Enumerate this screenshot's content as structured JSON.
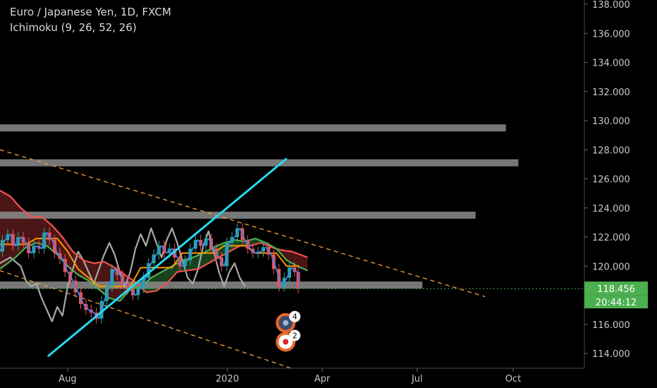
{
  "header": {
    "symbol_title": "Euro / Japanese Yen, 1D, FXCM",
    "indicator": "Ichimoku (9, 26, 52, 26)"
  },
  "chart_data": {
    "type": "line",
    "title": "Euro / Japanese Yen, 1D, FXCM",
    "y_ticks": [
      "114.000",
      "116.000",
      "118.000",
      "120.000",
      "122.000",
      "124.000",
      "126.000",
      "128.000",
      "130.000",
      "132.000",
      "134.000",
      "136.000",
      "138.000"
    ],
    "ylim": [
      113.5,
      138.2
    ],
    "x_ticks": [
      {
        "label": "Aug",
        "day": 0
      },
      {
        "label": "2020",
        "day": 153
      },
      {
        "label": "Apr",
        "day": 244
      },
      {
        "label": "Jul",
        "day": 335
      },
      {
        "label": "Oct",
        "day": 427
      }
    ],
    "current_price": "118.456",
    "countdown": "20:44:12",
    "resistance_zones": [
      {
        "price": 129.5,
        "x_end_day": 420
      },
      {
        "price": 127.1,
        "x_end_day": 432
      },
      {
        "price": 123.5,
        "x_end_day": 391
      },
      {
        "price": 118.7,
        "x_end_day": 340
      }
    ],
    "trendline": {
      "start": [
        -19,
        113.8
      ],
      "end": [
        210,
        127.4
      ]
    },
    "channel_upper": {
      "start": [
        -65,
        128.0
      ],
      "end": [
        400,
        117.9
      ]
    },
    "channel_lower": {
      "start": [
        -65,
        119.7
      ],
      "end": [
        230,
        112.6
      ]
    },
    "price_series": [
      [
        -65,
        121.0
      ],
      [
        -60,
        121.8
      ],
      [
        -55,
        122.2
      ],
      [
        -50,
        121.4
      ],
      [
        -45,
        122.0
      ],
      [
        -40,
        121.6
      ],
      [
        -35,
        120.9
      ],
      [
        -30,
        121.4
      ],
      [
        -25,
        121.2
      ],
      [
        -20,
        122.3
      ],
      [
        -15,
        121.8
      ],
      [
        -10,
        120.9
      ],
      [
        -5,
        120.5
      ],
      [
        0,
        119.6
      ],
      [
        5,
        119.0
      ],
      [
        10,
        118.2
      ],
      [
        15,
        117.4
      ],
      [
        20,
        117.0
      ],
      [
        25,
        116.8
      ],
      [
        30,
        116.4
      ],
      [
        35,
        117.6
      ],
      [
        40,
        118.6
      ],
      [
        45,
        119.8
      ],
      [
        50,
        119.4
      ],
      [
        55,
        118.8
      ],
      [
        60,
        118.4
      ],
      [
        65,
        118.0
      ],
      [
        70,
        118.5
      ],
      [
        75,
        119.2
      ],
      [
        80,
        120.2
      ],
      [
        85,
        120.8
      ],
      [
        90,
        121.4
      ],
      [
        95,
        120.9
      ],
      [
        100,
        121.2
      ],
      [
        105,
        120.6
      ],
      [
        110,
        120.0
      ],
      [
        115,
        120.4
      ],
      [
        120,
        121.2
      ],
      [
        125,
        121.8
      ],
      [
        130,
        121.4
      ],
      [
        135,
        121.9
      ],
      [
        140,
        121.2
      ],
      [
        145,
        120.6
      ],
      [
        150,
        120.0
      ],
      [
        155,
        121.6
      ],
      [
        160,
        122.0
      ],
      [
        165,
        122.6
      ],
      [
        170,
        121.8
      ],
      [
        175,
        121.2
      ],
      [
        180,
        120.9
      ],
      [
        185,
        121.0
      ],
      [
        190,
        121.3
      ],
      [
        195,
        120.8
      ],
      [
        200,
        119.8
      ],
      [
        205,
        118.6
      ],
      [
        210,
        119.2
      ],
      [
        215,
        119.9
      ],
      [
        220,
        119.6
      ],
      [
        222,
        118.5
      ]
    ],
    "kijun_series": [
      [
        -65,
        121.5
      ],
      [
        -40,
        121.5
      ],
      [
        -30,
        121.9
      ],
      [
        -10,
        121.9
      ],
      [
        0,
        121.0
      ],
      [
        10,
        119.8
      ],
      [
        30,
        118.6
      ],
      [
        60,
        118.6
      ],
      [
        70,
        119.9
      ],
      [
        100,
        119.9
      ],
      [
        110,
        120.9
      ],
      [
        140,
        120.9
      ],
      [
        150,
        121.4
      ],
      [
        170,
        121.4
      ],
      [
        180,
        120.9
      ],
      [
        200,
        120.9
      ],
      [
        210,
        120.0
      ],
      [
        222,
        120.0
      ]
    ],
    "lagging_series": [
      [
        -65,
        120.2
      ],
      [
        -55,
        120.6
      ],
      [
        -45,
        120.0
      ],
      [
        -40,
        119.0
      ],
      [
        -35,
        118.6
      ],
      [
        -30,
        118.8
      ],
      [
        -25,
        117.8
      ],
      [
        -20,
        117.0
      ],
      [
        -15,
        116.2
      ],
      [
        -10,
        117.2
      ],
      [
        -5,
        116.6
      ],
      [
        0,
        118.6
      ],
      [
        5,
        119.8
      ],
      [
        10,
        121.0
      ],
      [
        15,
        120.4
      ],
      [
        20,
        119.6
      ],
      [
        25,
        118.8
      ],
      [
        30,
        119.8
      ],
      [
        35,
        120.8
      ],
      [
        40,
        121.6
      ],
      [
        45,
        120.8
      ],
      [
        50,
        119.6
      ],
      [
        55,
        118.6
      ],
      [
        60,
        119.6
      ],
      [
        65,
        121.2
      ],
      [
        70,
        122.2
      ],
      [
        75,
        121.4
      ],
      [
        80,
        122.6
      ],
      [
        85,
        121.6
      ],
      [
        90,
        120.6
      ],
      [
        95,
        121.8
      ],
      [
        100,
        122.6
      ],
      [
        105,
        121.6
      ],
      [
        110,
        120.4
      ],
      [
        115,
        119.2
      ],
      [
        120,
        118.8
      ],
      [
        125,
        119.8
      ],
      [
        130,
        121.4
      ],
      [
        135,
        122.4
      ],
      [
        140,
        121.0
      ],
      [
        145,
        119.6
      ],
      [
        150,
        118.6
      ],
      [
        155,
        119.6
      ],
      [
        160,
        120.2
      ],
      [
        165,
        119.2
      ],
      [
        170,
        118.6
      ]
    ],
    "span_a_series": [
      [
        -65,
        119.8
      ],
      [
        -50,
        120.6
      ],
      [
        -40,
        121.3
      ],
      [
        -30,
        121.6
      ],
      [
        -20,
        121.4
      ],
      [
        -10,
        120.8
      ],
      [
        0,
        120.0
      ],
      [
        10,
        119.4
      ],
      [
        20,
        119.0
      ],
      [
        30,
        118.4
      ],
      [
        40,
        117.8
      ],
      [
        50,
        117.6
      ],
      [
        60,
        118.4
      ],
      [
        70,
        118.6
      ],
      [
        80,
        119.2
      ],
      [
        90,
        119.6
      ],
      [
        100,
        120.0
      ],
      [
        110,
        120.4
      ],
      [
        120,
        120.6
      ],
      [
        130,
        120.9
      ],
      [
        140,
        121.3
      ],
      [
        150,
        121.6
      ],
      [
        160,
        121.8
      ],
      [
        170,
        121.7
      ],
      [
        180,
        121.9
      ],
      [
        190,
        121.6
      ],
      [
        200,
        121.2
      ],
      [
        210,
        120.4
      ],
      [
        220,
        120.0
      ],
      [
        230,
        119.7
      ]
    ],
    "span_b_series": [
      [
        -65,
        125.2
      ],
      [
        -55,
        124.8
      ],
      [
        -45,
        124.0
      ],
      [
        -35,
        123.4
      ],
      [
        -25,
        123.4
      ],
      [
        -15,
        122.8
      ],
      [
        -5,
        122.0
      ],
      [
        5,
        121.0
      ],
      [
        15,
        120.4
      ],
      [
        25,
        120.2
      ],
      [
        35,
        120.3
      ],
      [
        45,
        119.9
      ],
      [
        55,
        119.4
      ],
      [
        65,
        118.9
      ],
      [
        75,
        118.2
      ],
      [
        85,
        118.3
      ],
      [
        95,
        118.8
      ],
      [
        105,
        119.6
      ],
      [
        115,
        119.7
      ],
      [
        125,
        119.8
      ],
      [
        135,
        120.2
      ],
      [
        145,
        120.6
      ],
      [
        155,
        121.0
      ],
      [
        165,
        121.4
      ],
      [
        175,
        121.4
      ],
      [
        185,
        121.6
      ],
      [
        195,
        121.3
      ],
      [
        205,
        121.1
      ],
      [
        215,
        121.0
      ],
      [
        230,
        120.6
      ]
    ],
    "markers": [
      {
        "label": "4",
        "day": 190,
        "price": 116.1
      },
      {
        "label": "2",
        "day": 190,
        "price": 114.8
      }
    ],
    "colors": {
      "price": "#3a83ff",
      "kijun": "#ff9800",
      "lagging": "#a8a8a8",
      "span_a": "#4caf50",
      "span_b": "#ef5350",
      "trendline": "#26d9f0",
      "channel": "#f4a340",
      "zone": "#8c8c8c",
      "price_tag": "#4caf50"
    }
  }
}
